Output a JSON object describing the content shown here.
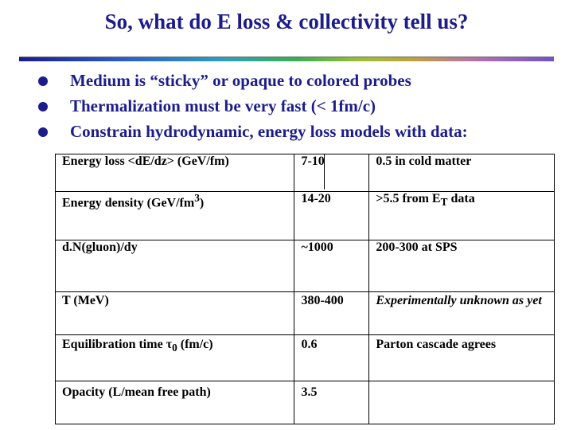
{
  "slide": {
    "title": "So, what do E loss & collectivity tell us?",
    "bullets": [
      "Medium is “sticky” or opaque to colored probes",
      "Thermalization must be very fast (< 1fm/c)",
      "Constrain hydrodynamic, energy loss models with data:"
    ]
  },
  "table": {
    "rows": [
      {
        "quantity": "Energy loss <dE/dz> (GeV/fm)",
        "value": "7-10",
        "note": "0.5 in cold matter"
      },
      {
        "quantity": "Energy density (GeV/fm",
        "quantity_sup": "3",
        "quantity_end": ")",
        "value": "14-20",
        "note": ">5.5 from E",
        "note_sub": "T",
        "note_end": " data"
      },
      {
        "quantity": "d.N(gluon)/dy",
        "value": "~1000",
        "note": "200-300 at SPS"
      },
      {
        "quantity": "T (MeV)",
        "value": "380-400",
        "note": "Experimentally unknown as yet"
      },
      {
        "quantity": "Equilibration time ",
        "quantity_sym": "τ",
        "quantity_sub": "0",
        "quantity_end": " (fm/c)",
        "value": "0.6",
        "note": "Parton cascade agrees"
      },
      {
        "quantity": "Opacity (L/mean free path)",
        "value": "3.5",
        "note": ""
      }
    ]
  }
}
